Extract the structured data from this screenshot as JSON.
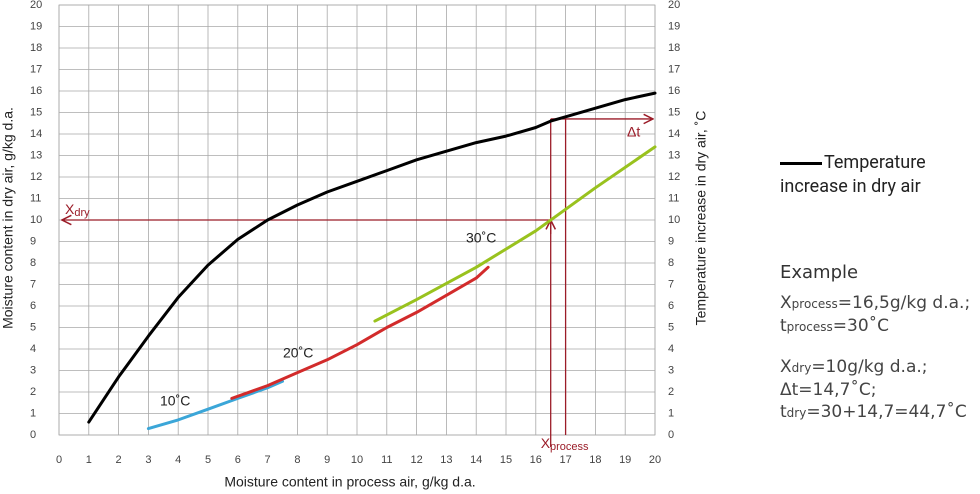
{
  "chart_data": {
    "type": "line",
    "xlabel": "Moisture content in process air, g/kg d.a.",
    "ylabel": "Moisture content in dry air, g/kg d.a.",
    "y2label": "Temperature increase in dry air, ˚C",
    "xlim": [
      0,
      20
    ],
    "ylim": [
      0,
      20
    ],
    "y2lim": [
      0,
      20
    ],
    "xticks": [
      0,
      1,
      2,
      3,
      4,
      5,
      6,
      7,
      8,
      9,
      10,
      11,
      12,
      13,
      14,
      15,
      16,
      17,
      18,
      19,
      20
    ],
    "yticks": [
      0,
      1,
      2,
      3,
      4,
      5,
      6,
      7,
      8,
      9,
      10,
      11,
      12,
      13,
      14,
      15,
      16,
      17,
      18,
      19,
      20
    ],
    "y2ticks": [
      0,
      1,
      2,
      3,
      4,
      5,
      6,
      7,
      8,
      9,
      10,
      11,
      12,
      13,
      14,
      15,
      16,
      17,
      18,
      19,
      20
    ],
    "grid": true,
    "series": [
      {
        "name": "Temperature increase in dry air",
        "color": "#000000",
        "axis": "y2",
        "x": [
          1,
          2,
          3,
          4,
          5,
          6,
          7,
          8,
          9,
          10,
          11,
          12,
          13,
          14,
          15,
          16,
          16.5,
          17,
          18,
          19,
          20
        ],
        "values": [
          0.6,
          2.7,
          4.6,
          6.4,
          7.9,
          9.1,
          10.0,
          10.7,
          11.3,
          11.8,
          12.3,
          12.8,
          13.2,
          13.6,
          13.9,
          14.3,
          14.6,
          14.8,
          15.2,
          15.6,
          15.9
        ]
      },
      {
        "name": "10˚C",
        "color": "#3ba6d8",
        "x": [
          3,
          4,
          5,
          6,
          7,
          7.5
        ],
        "values": [
          0.3,
          0.7,
          1.2,
          1.7,
          2.2,
          2.5
        ]
      },
      {
        "name": "20˚C",
        "color": "#d22b2b",
        "x": [
          5.8,
          7,
          8,
          9,
          10,
          11,
          12,
          13,
          14,
          14.4
        ],
        "values": [
          1.7,
          2.3,
          2.9,
          3.5,
          4.2,
          5.0,
          5.7,
          6.5,
          7.3,
          7.8
        ]
      },
      {
        "name": "30˚C",
        "color": "#99c21e",
        "x": [
          10.6,
          12,
          14,
          16,
          18,
          20
        ],
        "values": [
          5.3,
          6.3,
          7.8,
          9.5,
          11.5,
          13.4
        ]
      }
    ],
    "guides": {
      "x": 16.5,
      "y": 10,
      "dt_x": 17,
      "dt_y": 14.7,
      "color": "#9b1c28"
    },
    "annotations": {
      "x_dry": {
        "main": "X",
        "sub": "dry"
      },
      "x_process": {
        "main": "X",
        "sub": "process"
      },
      "delta_t": "Δt"
    }
  },
  "example": {
    "title": "Example",
    "lines": [
      {
        "main": "X",
        "sub": "process",
        "rest": "=16,5g/kg d.a.;"
      },
      {
        "main": "t",
        "sub": "process",
        "rest": "=30˚C"
      },
      {
        "main": "X",
        "sub": "dry",
        "rest": "=10g/kg d.a.;"
      },
      {
        "main": "Δt=14,7˚C;"
      },
      {
        "main": "t",
        "sub": "dry",
        "rest": "=30+14,7=44,7˚C"
      }
    ]
  }
}
